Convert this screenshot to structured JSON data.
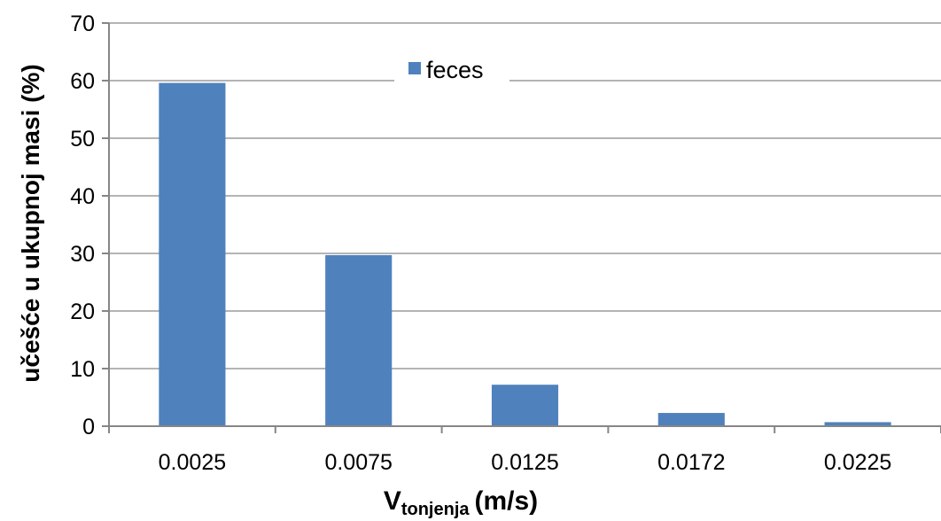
{
  "chart_data": {
    "type": "bar",
    "categories": [
      "0.0025",
      "0.0075",
      "0.0125",
      "0.0172",
      "0.0225"
    ],
    "series": [
      {
        "name": "feces",
        "values": [
          59.6,
          29.7,
          7.2,
          2.3,
          0.7
        ],
        "color": "#4f81bd"
      }
    ],
    "xlabel_main": "V",
    "xlabel_sub": "tonjenja",
    "xlabel_unit": "(m/s)",
    "ylabel": "učešće u ukupnoj masi (%)",
    "ylim": [
      0,
      70
    ],
    "yticks": [
      "0",
      "10",
      "20",
      "30",
      "40",
      "50",
      "60",
      "70"
    ],
    "grid": true,
    "legend": "top-center"
  }
}
